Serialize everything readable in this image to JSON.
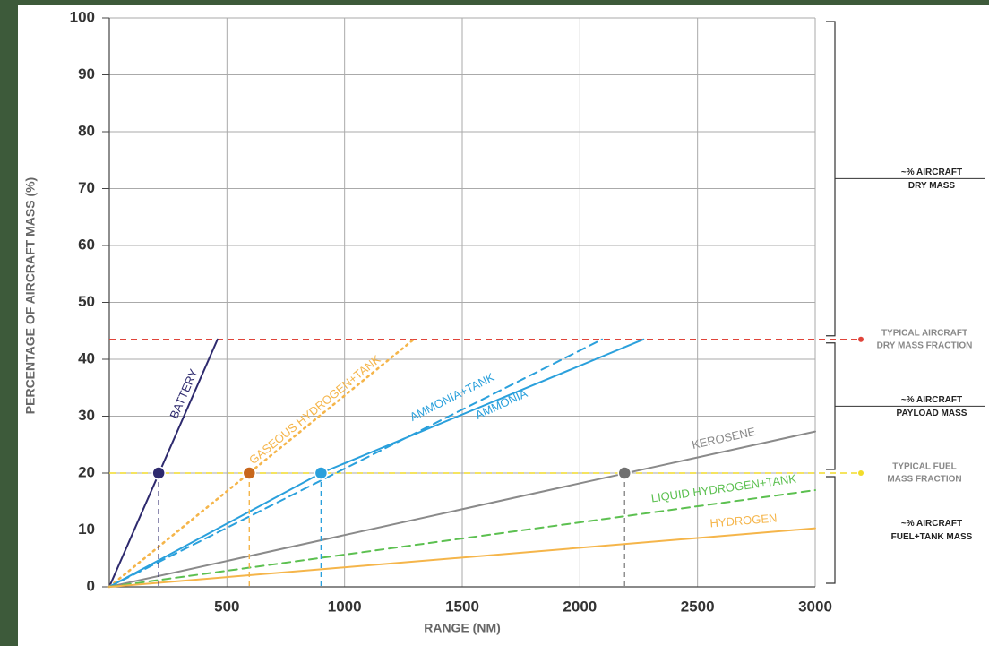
{
  "chart_data": {
    "type": "line",
    "x_label": "RANGE (NM)",
    "y_label": "PERCENTAGE OF AIRCRAFT MASS (%)",
    "xlim": [
      0,
      3000
    ],
    "ylim": [
      0,
      100
    ],
    "xticks": [
      500,
      1000,
      1500,
      2000,
      2500,
      3000
    ],
    "yticks": [
      0,
      10,
      20,
      30,
      40,
      50,
      60,
      70,
      80,
      90,
      100
    ],
    "grid": true,
    "series": [
      {
        "name": "BATTERY",
        "color": "#2e2a6e",
        "style": "solid",
        "x": [
          0,
          460
        ],
        "values": [
          0,
          43.5
        ],
        "marker": {
          "x": 210,
          "y": 20,
          "color": "#2e2a6e"
        }
      },
      {
        "name": "GASEOUS HYDROGEN+TANK",
        "color": "#f5b54a",
        "style": "dotted",
        "x": [
          0,
          1294
        ],
        "values": [
          0,
          43.5
        ],
        "marker": {
          "x": 595,
          "y": 20,
          "color": "#c8671c"
        }
      },
      {
        "name": "AMMONIA+TANK",
        "color": "#2aa0dc",
        "style": "dashed",
        "x": [
          0,
          2094
        ],
        "values": [
          0,
          43.5
        ]
      },
      {
        "name": "AMMONIA",
        "color": "#2aa0dc",
        "style": "solid",
        "x": [
          0,
          900,
          2270
        ],
        "values": [
          0,
          20,
          43.5
        ],
        "marker": {
          "x": 900,
          "y": 20,
          "color": "#2aa0dc"
        }
      },
      {
        "name": "KEROSENE",
        "color": "#8a8a8a",
        "style": "solid",
        "x": [
          0,
          3000
        ],
        "values": [
          0,
          27.3
        ],
        "marker": {
          "x": 2190,
          "y": 20,
          "color": "#707070"
        }
      },
      {
        "name": "LIQUID HYDROGEN+TANK",
        "color": "#5cc050",
        "style": "dashed",
        "x": [
          0,
          3000
        ],
        "values": [
          0,
          17
        ]
      },
      {
        "name": "HYDROGEN",
        "color": "#f5b54a",
        "style": "solid",
        "x": [
          0,
          3000
        ],
        "values": [
          0,
          10.3
        ]
      }
    ],
    "reference_lines": [
      {
        "value": 43.5,
        "color": "#e0443a",
        "lines": [
          "TYPICAL AIRCRAFT",
          "DRY MASS FRACTION"
        ]
      },
      {
        "value": 20,
        "color": "#f2dc2a",
        "lines": [
          "TYPICAL FUEL",
          "MASS FRACTION"
        ]
      }
    ],
    "brackets": [
      {
        "from": 43.5,
        "to": 100,
        "lines": [
          "~% AIRCRAFT",
          "DRY MASS"
        ]
      },
      {
        "from": 20,
        "to": 43.5,
        "lines": [
          "~% AIRCRAFT",
          "PAYLOAD MASS"
        ]
      },
      {
        "from": 0,
        "to": 20,
        "lines": [
          "~% AIRCRAFT",
          "FUEL+TANK MASS"
        ]
      }
    ]
  }
}
